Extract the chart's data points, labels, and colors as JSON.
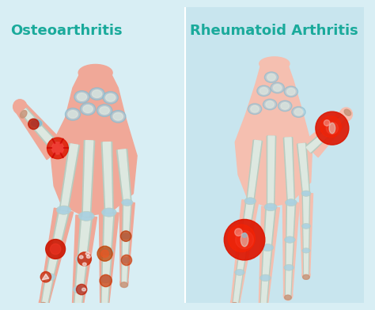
{
  "bg_left": "#d8eef4",
  "bg_right": "#c8e5ee",
  "title_left": "Osteoarthritis",
  "title_right": "Rheumatoid Arthritis",
  "title_color": "#1aaa9b",
  "title_fontsize": 13,
  "title_fontweight": "bold",
  "skin_color": "#f0a898",
  "skin_dark": "#e89080",
  "skin_light": "#f5bfb0",
  "bone_color": "#dde8e0",
  "bone_edge": "#b8ccc0",
  "joint_blue": "#a8d0e0",
  "joint_blue2": "#88bcd0",
  "nail_color": "#c8957a",
  "inflame_red": "#dd1818",
  "inflame_red2": "#cc0000",
  "fig_width": 4.74,
  "fig_height": 3.92,
  "dpi": 100
}
